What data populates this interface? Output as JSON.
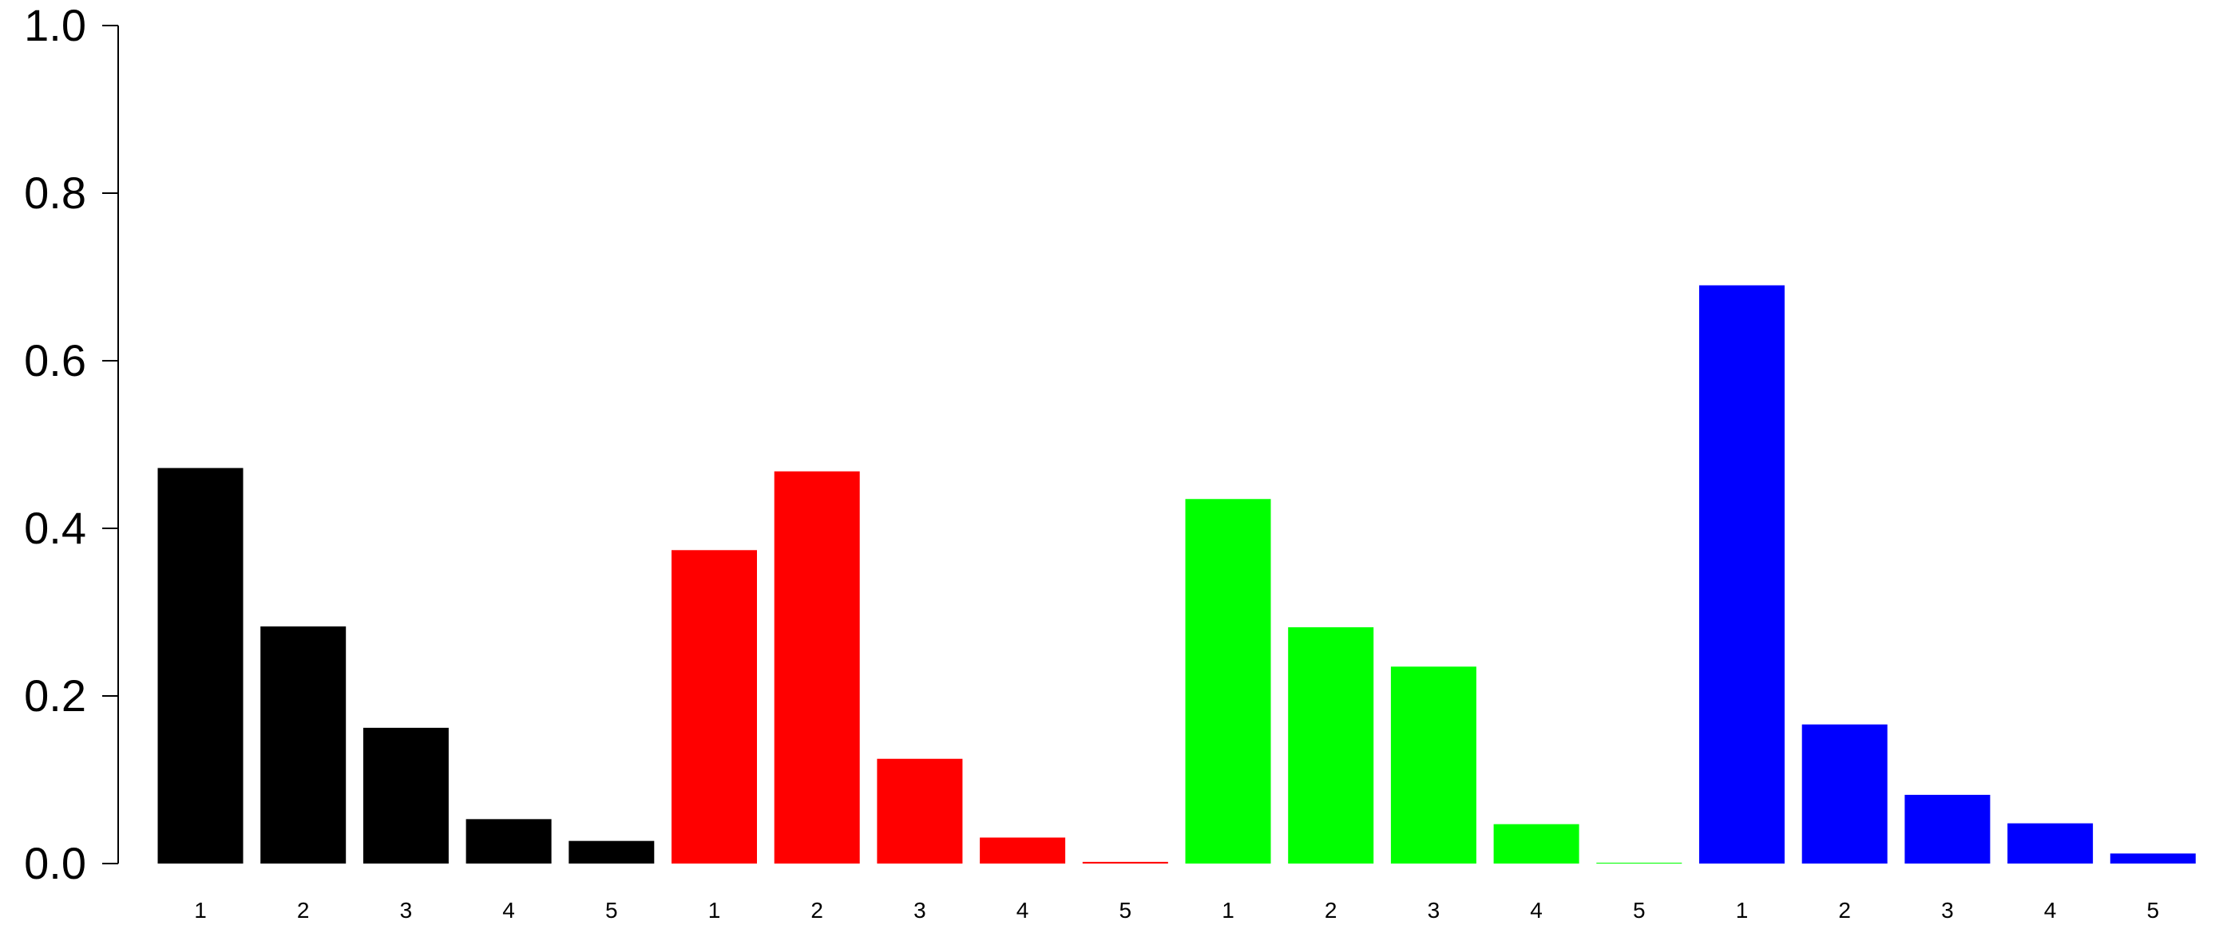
{
  "chart_data": {
    "type": "bar",
    "title": "",
    "xlabel": "",
    "ylabel": "",
    "ylim": [
      0,
      1.0
    ],
    "yticks": [
      "0.0",
      "0.2",
      "0.4",
      "0.6",
      "0.8",
      "1.0"
    ],
    "grid": false,
    "legend": "none",
    "groups": [
      {
        "color": "#000000",
        "categories": [
          "1",
          "2",
          "3",
          "4",
          "5"
        ],
        "values": [
          0.472,
          0.283,
          0.162,
          0.053,
          0.027
        ]
      },
      {
        "color": "#ff0000",
        "categories": [
          "1",
          "2",
          "3",
          "4",
          "5"
        ],
        "values": [
          0.374,
          0.468,
          0.125,
          0.031,
          0.002
        ]
      },
      {
        "color": "#00ff00",
        "categories": [
          "1",
          "2",
          "3",
          "4",
          "5"
        ],
        "values": [
          0.435,
          0.282,
          0.235,
          0.047,
          0.001
        ]
      },
      {
        "color": "#0000ff",
        "categories": [
          "1",
          "2",
          "3",
          "4",
          "5"
        ],
        "values": [
          0.69,
          0.166,
          0.082,
          0.048,
          0.012
        ]
      }
    ]
  }
}
